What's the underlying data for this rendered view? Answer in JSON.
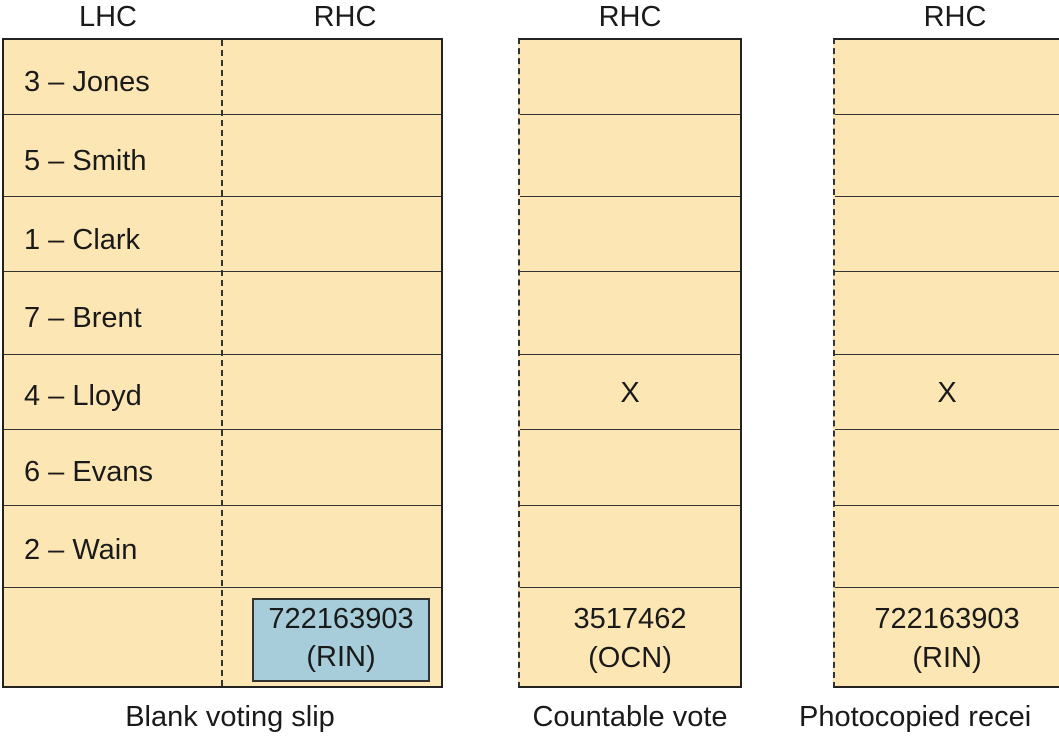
{
  "slips": [
    {
      "headers": [
        "LHC",
        "RHC"
      ],
      "caption": "Blank voting slip",
      "candidates": [
        "3 – Jones",
        "5 – Smith",
        "1 – Clark",
        "7 – Brent",
        "4 – Lloyd",
        "6 – Evans",
        "2 – Wain"
      ],
      "code": {
        "number": "722163903",
        "label": "(RIN)"
      }
    },
    {
      "header": "RHC",
      "caption": "Countable vote",
      "mark": "X",
      "code": {
        "number": "3517462",
        "label": "(OCN)"
      }
    },
    {
      "header": "RHC",
      "caption": "Photocopied recei",
      "mark": "X",
      "code": {
        "number": "722163903",
        "label": "(RIN)"
      }
    }
  ],
  "colors": {
    "slip": "#fce6b3",
    "rin_box": "#a6cdd9"
  }
}
